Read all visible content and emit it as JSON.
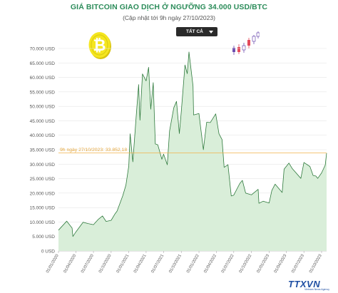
{
  "header": {
    "title": "GIÁ BITCOIN GIAO DỊCH Ở NGƯỠNG 34.000 USD/BTC",
    "subtitle": "(Cập nhật tới 9h ngày 27/10/2023)"
  },
  "controls": {
    "range_label": "TẤT CẢ"
  },
  "logo": {
    "text": "TTXVN",
    "subtext": "Vietnam News Agency"
  },
  "colors": {
    "title": "#2c8c5a",
    "area_fill": "#d9eed9",
    "line": "#2f7a3d",
    "marker_line": "#f2b24a",
    "marker_text": "#e4a53a",
    "grid": "#e6e6e6",
    "coin": "#f5e61e"
  },
  "icons": [
    "bitcoin-coin-icon",
    "candlestick-icon",
    "dropdown-caret-icon"
  ],
  "chart_data": {
    "type": "area",
    "title": "GIÁ BITCOIN GIAO DỊCH Ở NGƯỠNG 34.000 USD/BTC",
    "xlabel": "",
    "ylabel": "",
    "x_range": [
      "2020-01-01",
      "2023-10-27"
    ],
    "ylim": [
      0,
      70000
    ],
    "y_ticks": [
      0,
      5000,
      10000,
      15000,
      20000,
      25000,
      30000,
      35000,
      40000,
      45000,
      50000,
      55000,
      60000,
      65000,
      70000
    ],
    "y_tick_labels": [
      "0 USD",
      "5.000 USD",
      "10.000 USD",
      "15.000 USD",
      "20.000 USD",
      "25.000 USD",
      "30.000 USD",
      "35.000 USD",
      "40.000 USD",
      "45.000 USD",
      "50.000 USD",
      "55.000 USD",
      "60.000 USD",
      "65.000 USD",
      "70.000 USD"
    ],
    "x_ticks": [
      "2020-01-01",
      "2020-04-01",
      "2020-07-01",
      "2020-10-01",
      "2021-01-01",
      "2021-04-01",
      "2021-07-01",
      "2021-10-01",
      "2022-01-01",
      "2022-04-01",
      "2022-07-01",
      "2022-10-01",
      "2023-01-01",
      "2023-04-01",
      "2023-07-01",
      "2023-10-01"
    ],
    "x_tick_labels": [
      "01/01/2020",
      "01/04/2020",
      "01/07/2020",
      "01/10/2020",
      "01/01/2021",
      "01/04/2021",
      "01/07/2021",
      "01/10/2021",
      "01/01/2022",
      "01/04/2022",
      "01/07/2022",
      "01/10/2022",
      "01/01/2023",
      "01/04/2023",
      "01/07/2023",
      "01/10/2023"
    ],
    "grid": true,
    "legend": "none",
    "series": [
      {
        "x": [
          "2020-01-01",
          "2020-02-13",
          "2020-03-12",
          "2020-03-16",
          "2020-04-01",
          "2020-05-08",
          "2020-06-01",
          "2020-07-01",
          "2020-07-27",
          "2020-08-17",
          "2020-09-05",
          "2020-10-01",
          "2020-10-21",
          "2020-11-01",
          "2020-12-01",
          "2020-12-17",
          "2021-01-01",
          "2021-01-08",
          "2021-01-22",
          "2021-02-08",
          "2021-02-21",
          "2021-02-28",
          "2021-03-13",
          "2021-04-01",
          "2021-04-14",
          "2021-04-25",
          "2021-05-08",
          "2021-05-19",
          "2021-06-01",
          "2021-06-22",
          "2021-07-01",
          "2021-07-20",
          "2021-08-01",
          "2021-08-23",
          "2021-09-06",
          "2021-09-21",
          "2021-10-01",
          "2021-10-20",
          "2021-11-01",
          "2021-11-10",
          "2021-12-01",
          "2021-12-04",
          "2022-01-01",
          "2022-01-24",
          "2022-02-10",
          "2022-03-01",
          "2022-03-29",
          "2022-04-15",
          "2022-05-01",
          "2022-05-12",
          "2022-06-01",
          "2022-06-18",
          "2022-07-01",
          "2022-08-01",
          "2022-08-15",
          "2022-09-01",
          "2022-10-01",
          "2022-11-05",
          "2022-11-09",
          "2022-12-01",
          "2023-01-01",
          "2023-01-15",
          "2023-02-01",
          "2023-03-10",
          "2023-03-20",
          "2023-04-14",
          "2023-05-01",
          "2023-06-15",
          "2023-07-01",
          "2023-08-01",
          "2023-08-18",
          "2023-09-01",
          "2023-09-11",
          "2023-10-01",
          "2023-10-20",
          "2023-10-27"
        ],
        "values": [
          7200,
          10300,
          7900,
          5000,
          6600,
          9900,
          9500,
          9100,
          11000,
          12100,
          10200,
          10600,
          12800,
          13800,
          19200,
          22800,
          29400,
          40500,
          30800,
          46300,
          57500,
          45200,
          61200,
          58800,
          63500,
          49000,
          58200,
          37000,
          36700,
          31700,
          33500,
          29800,
          41500,
          49500,
          51700,
          40600,
          48100,
          64300,
          61300,
          68800,
          57000,
          47000,
          47500,
          35000,
          44500,
          44400,
          47400,
          40500,
          38500,
          28900,
          29800,
          19000,
          19300,
          23300,
          24400,
          20000,
          19400,
          21300,
          16500,
          17200,
          16600,
          20900,
          23100,
          20200,
          28300,
          30400,
          28500,
          25100,
          30600,
          29200,
          26100,
          25900,
          25100,
          27000,
          29700,
          33852
        ]
      }
    ],
    "annotations": [
      {
        "text": "9h ngày 27/10/2023: 33.852,18",
        "y": 33852.18
      }
    ]
  }
}
